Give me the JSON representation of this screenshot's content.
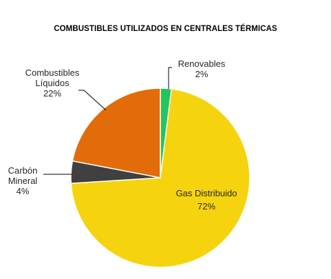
{
  "chart_data": {
    "type": "pie",
    "title": "COMBUSTIBLES UTILIZADOS EN CENTRALES TÉRMICAS",
    "start_angle_deg": 0,
    "direction": "clockwise",
    "slices": [
      {
        "label_lines": [
          "Renovables"
        ],
        "percent_label": "2%",
        "value": 2,
        "color": "#22c55e"
      },
      {
        "label_lines": [
          "Gas Distribuido"
        ],
        "percent_label": "72%",
        "value": 72,
        "color": "#f5d40f"
      },
      {
        "label_lines": [
          "Carbón",
          "Mineral"
        ],
        "percent_label": "4%",
        "value": 4,
        "color": "#404040"
      },
      {
        "label_lines": [
          "Combustibles",
          "Líquidos"
        ],
        "percent_label": "22%",
        "value": 22,
        "color": "#e36c0a"
      }
    ],
    "legend": "none"
  }
}
